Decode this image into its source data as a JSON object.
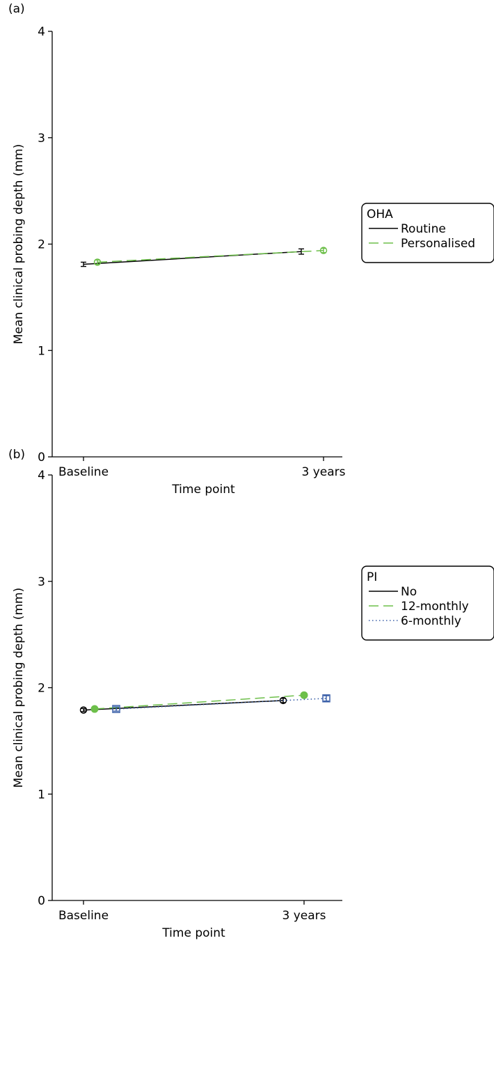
{
  "colors": {
    "black": "#000000",
    "green": "#6dbf4a",
    "blue": "#3a5fa8"
  },
  "chart_data": [
    {
      "type": "line",
      "panel_label": "(a)",
      "xlabel": "Time point",
      "ylabel": "Mean clinical probing depth (mm)",
      "categories": [
        "Baseline",
        "3 years"
      ],
      "ylim": [
        0,
        4
      ],
      "yticks": [
        "0",
        "1",
        "2",
        "3",
        "4"
      ],
      "legend": {
        "title": "OHA",
        "position": "right"
      },
      "series": [
        {
          "name": "Routine",
          "values": [
            1.81,
            1.93
          ],
          "err": [
            0.02,
            0.025
          ],
          "color": "#000000",
          "dash": "solid",
          "marker": "none"
        },
        {
          "name": "Personalised",
          "values": [
            1.83,
            1.94
          ],
          "err": [
            0.02,
            0.02
          ],
          "color": "#6dbf4a",
          "dash": "dashed",
          "marker": "circle-open"
        }
      ]
    },
    {
      "type": "line",
      "panel_label": "(b)",
      "xlabel": "Time point",
      "ylabel": "Mean clinical probing depth (mm)",
      "categories": [
        "Baseline",
        "3 years"
      ],
      "ylim": [
        0,
        4
      ],
      "yticks": [
        "0",
        "1",
        "2",
        "3",
        "4"
      ],
      "legend": {
        "title": "PI",
        "position": "right"
      },
      "series": [
        {
          "name": "No",
          "values": [
            1.79,
            1.88
          ],
          "err": [
            0.015,
            0.02
          ],
          "color": "#000000",
          "dash": "solid",
          "marker": "circle-open"
        },
        {
          "name": "12-monthly",
          "values": [
            1.8,
            1.93
          ],
          "err": [
            0.01,
            0.015
          ],
          "color": "#6dbf4a",
          "dash": "dashed",
          "marker": "circle-filled"
        },
        {
          "name": "6-monthly",
          "values": [
            1.8,
            1.9
          ],
          "err": [
            0.02,
            0.025
          ],
          "color": "#3a5fa8",
          "dash": "dotted",
          "marker": "square-open"
        }
      ]
    }
  ]
}
